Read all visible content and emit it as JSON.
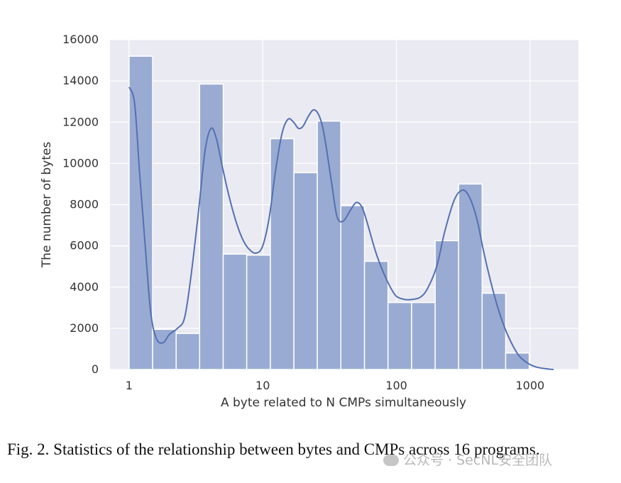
{
  "chart_data": {
    "type": "bar",
    "subtype": "histogram-with-kde",
    "x_scale": "log",
    "xlabel": "A byte related to N CMPs simultaneously",
    "ylabel": "The number of bytes",
    "x_ticks": [
      1,
      10,
      100,
      1000
    ],
    "x_tick_labels": [
      "1",
      "10",
      "100",
      "1000"
    ],
    "y_ticks": [
      0,
      2000,
      4000,
      6000,
      8000,
      10000,
      12000,
      14000,
      16000
    ],
    "y_tick_labels": [
      "0",
      "2000",
      "4000",
      "6000",
      "8000",
      "10000",
      "12000",
      "14000",
      "16000"
    ],
    "xlim": [
      0.72,
      2300
    ],
    "ylim": [
      0,
      16000
    ],
    "grid": true,
    "bins": [
      {
        "x0": 1.0,
        "x1": 1.5,
        "value": 15200
      },
      {
        "x0": 1.5,
        "x1": 2.25,
        "value": 1950
      },
      {
        "x0": 2.25,
        "x1": 3.37,
        "value": 1750
      },
      {
        "x0": 3.37,
        "x1": 5.06,
        "value": 13850
      },
      {
        "x0": 5.06,
        "x1": 7.59,
        "value": 5600
      },
      {
        "x0": 7.59,
        "x1": 11.4,
        "value": 5550
      },
      {
        "x0": 11.4,
        "x1": 17.1,
        "value": 11200
      },
      {
        "x0": 17.1,
        "x1": 25.6,
        "value": 9550
      },
      {
        "x0": 25.6,
        "x1": 38.4,
        "value": 12050
      },
      {
        "x0": 38.4,
        "x1": 57.7,
        "value": 7950
      },
      {
        "x0": 57.7,
        "x1": 86.5,
        "value": 5250
      },
      {
        "x0": 86.5,
        "x1": 130,
        "value": 3250
      },
      {
        "x0": 130,
        "x1": 195,
        "value": 3250
      },
      {
        "x0": 195,
        "x1": 292,
        "value": 6250
      },
      {
        "x0": 292,
        "x1": 438,
        "value": 9000
      },
      {
        "x0": 438,
        "x1": 657,
        "value": 3700
      },
      {
        "x0": 657,
        "x1": 985,
        "value": 800
      },
      {
        "x0": 985,
        "x1": 1478,
        "value": 50
      }
    ],
    "kde": {
      "x": [
        1.0,
        1.1,
        1.2,
        1.32,
        1.45,
        1.6,
        1.8,
        2.0,
        2.3,
        2.6,
        2.9,
        3.3,
        3.7,
        4.1,
        4.5,
        5.0,
        5.6,
        6.3,
        7.1,
        8.0,
        9.0,
        10.0,
        11.2,
        12.5,
        14.0,
        15.5,
        17.0,
        18.5,
        20.0,
        22.0,
        24.0,
        26.0,
        28.0,
        30.0,
        33.0,
        36.0,
        40.0,
        45.0,
        50.0,
        55.0,
        60.0,
        70.0,
        80.0,
        90.0,
        100,
        115,
        130,
        150,
        170,
        200,
        230,
        270,
        310,
        350,
        400,
        450,
        520,
        600,
        700,
        820,
        950,
        1100,
        1300,
        1500
      ],
      "y": [
        13700,
        12900,
        9500,
        6000,
        2800,
        1500,
        1300,
        1700,
        2000,
        2500,
        4500,
        7600,
        10600,
        11700,
        11200,
        9800,
        8400,
        7200,
        6300,
        5800,
        5650,
        6000,
        7400,
        9700,
        11500,
        12150,
        12000,
        11700,
        11800,
        12300,
        12600,
        12400,
        11800,
        10700,
        8900,
        7400,
        7200,
        7700,
        8100,
        7900,
        7200,
        5700,
        4700,
        4000,
        3550,
        3400,
        3400,
        3500,
        3900,
        5000,
        6700,
        8200,
        8700,
        8400,
        7300,
        5700,
        4000,
        2600,
        1500,
        700,
        330,
        130,
        40,
        0
      ]
    }
  },
  "colors": {
    "plot_background": "#eaeaf2",
    "grid": "#ffffff",
    "bar_fill": "#9aabd3",
    "bar_edge": "#ffffff",
    "kde_line": "#5470b0",
    "text": "#333333"
  },
  "caption": {
    "text": "Fig. 2.    Statistics of the relationship between bytes and CMPs across 16 programs."
  },
  "watermark": {
    "text": "公众号 · SecNL安全团队",
    "icon": "wechat-icon"
  }
}
